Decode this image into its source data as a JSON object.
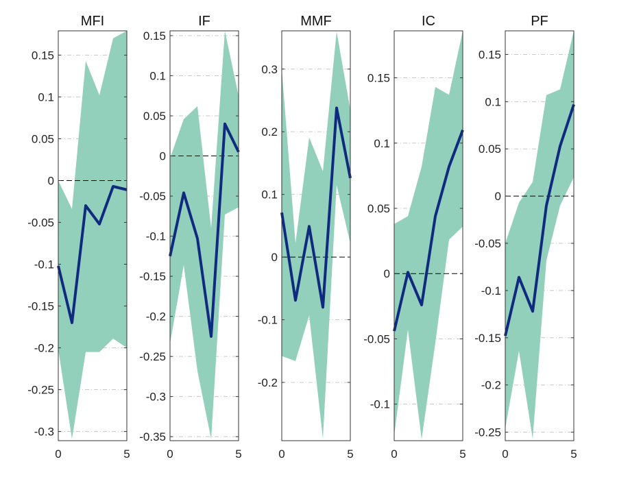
{
  "chart_data": [
    {
      "type": "area",
      "title": "MFI",
      "x": [
        0,
        1,
        2,
        3,
        4,
        5
      ],
      "xticks": [
        "0",
        "5"
      ],
      "ylim": [
        -0.311,
        0.179
      ],
      "yticks": [
        0.15,
        0.1,
        0.05,
        0,
        -0.05,
        -0.1,
        -0.15,
        -0.2,
        -0.25,
        -0.3
      ],
      "yticklabels": [
        "0.15",
        "0.1",
        "0.05",
        "0",
        "-0.05",
        "-0.1",
        "-0.15",
        "-0.2",
        "-0.25",
        "-0.3"
      ],
      "series": [
        {
          "name": "response",
          "values": [
            -0.102,
            -0.17,
            -0.03,
            -0.052,
            -0.007,
            -0.011
          ]
        },
        {
          "name": "upper",
          "values": [
            0,
            -0.034,
            0.143,
            0.102,
            0.17,
            0.179
          ]
        },
        {
          "name": "lower",
          "values": [
            -0.202,
            -0.309,
            -0.205,
            -0.205,
            -0.189,
            -0.2
          ]
        }
      ]
    },
    {
      "type": "area",
      "title": "IF",
      "x": [
        0,
        1,
        2,
        3,
        4,
        5
      ],
      "xticks": [
        "0",
        "5"
      ],
      "ylim": [
        -0.355,
        0.156
      ],
      "yticks": [
        0.15,
        0.1,
        0.05,
        0,
        -0.05,
        -0.1,
        -0.15,
        -0.2,
        -0.25,
        -0.3,
        -0.35
      ],
      "yticklabels": [
        "0.15",
        "0.1",
        "0.05",
        "0",
        "-0.05",
        "-0.1",
        "-0.15",
        "-0.2",
        "-0.25",
        "-0.3",
        "-0.35"
      ],
      "series": [
        {
          "name": "response",
          "values": [
            -0.125,
            -0.046,
            -0.103,
            -0.225,
            0.04,
            0.005
          ]
        },
        {
          "name": "upper",
          "values": [
            -0.003,
            0.046,
            0.062,
            -0.09,
            0.156,
            0.075
          ]
        },
        {
          "name": "lower",
          "values": [
            -0.234,
            -0.136,
            -0.268,
            -0.353,
            -0.073,
            -0.064
          ]
        }
      ]
    },
    {
      "type": "area",
      "title": "MMF",
      "x": [
        0,
        1,
        2,
        3,
        4,
        5
      ],
      "xticks": [
        "0",
        "5"
      ],
      "ylim": [
        -0.293,
        0.361
      ],
      "yticks": [
        0.3,
        0.2,
        0.1,
        0,
        -0.1,
        -0.2
      ],
      "yticklabels": [
        "0.3",
        "0.2",
        "0.1",
        "0",
        "-0.1",
        "-0.2"
      ],
      "series": [
        {
          "name": "response",
          "values": [
            0.071,
            -0.069,
            0.049,
            -0.08,
            0.238,
            0.126
          ]
        },
        {
          "name": "upper",
          "values": [
            0.3,
            0.022,
            0.191,
            0.137,
            0.36,
            0.235
          ]
        },
        {
          "name": "lower",
          "values": [
            -0.158,
            -0.166,
            -0.093,
            -0.29,
            0.115,
            0.022
          ]
        }
      ]
    },
    {
      "type": "area",
      "title": "IC",
      "x": [
        0,
        1,
        2,
        3,
        4,
        5
      ],
      "xticks": [
        "0",
        "5"
      ],
      "ylim": [
        -0.128,
        0.186
      ],
      "yticks": [
        0.15,
        0.1,
        0.05,
        0,
        -0.05,
        -0.1
      ],
      "yticklabels": [
        "0.15",
        "0.1",
        "0.05",
        "0",
        "-0.05",
        "-0.1"
      ],
      "series": [
        {
          "name": "response",
          "values": [
            -0.044,
            0.001,
            -0.024,
            0.044,
            0.082,
            0.11
          ]
        },
        {
          "name": "upper",
          "values": [
            0.038,
            0.044,
            0.082,
            0.143,
            0.137,
            0.186
          ]
        },
        {
          "name": "lower",
          "values": [
            -0.124,
            -0.043,
            -0.127,
            -0.053,
            0.026,
            0.036
          ]
        }
      ]
    },
    {
      "type": "area",
      "title": "PF",
      "x": [
        0,
        1,
        2,
        3,
        4,
        5
      ],
      "xticks": [
        "0",
        "5"
      ],
      "ylim": [
        -0.259,
        0.175
      ],
      "yticks": [
        0.15,
        0.1,
        0.05,
        0,
        -0.05,
        -0.1,
        -0.15,
        -0.2,
        -0.25
      ],
      "yticklabels": [
        "0.15",
        "0.1",
        "0.05",
        "0",
        "-0.05",
        "-0.1",
        "-0.15",
        "-0.2",
        "-0.25"
      ],
      "series": [
        {
          "name": "response",
          "values": [
            -0.148,
            -0.086,
            -0.122,
            -0.01,
            0.053,
            0.097
          ]
        },
        {
          "name": "upper",
          "values": [
            -0.05,
            -0.007,
            0.015,
            0.107,
            0.113,
            0.175
          ]
        },
        {
          "name": "lower",
          "values": [
            -0.246,
            -0.164,
            -0.257,
            -0.068,
            -0.01,
            0.02
          ]
        }
      ]
    }
  ],
  "colors": {
    "band": "#93d0bc",
    "line": "#0f2a7e",
    "grid": "#c8c8c8"
  }
}
